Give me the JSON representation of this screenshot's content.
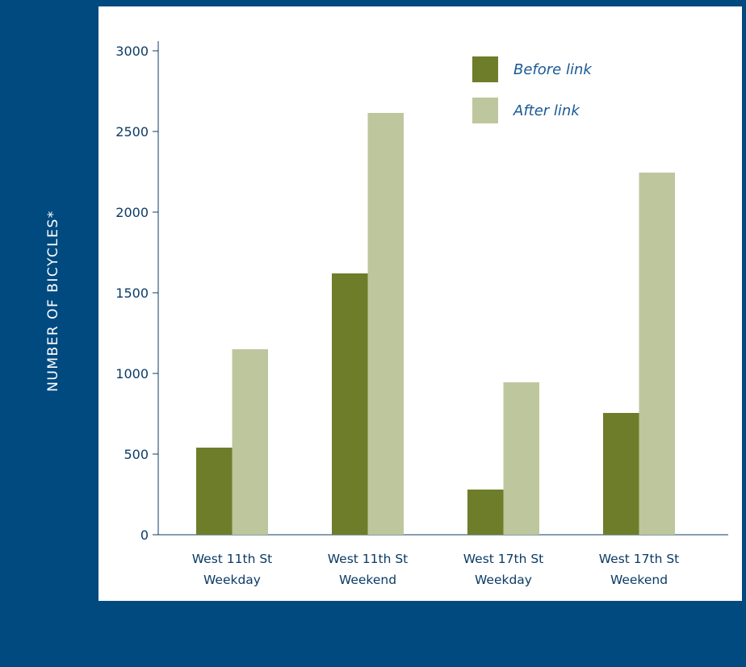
{
  "chart_data": {
    "type": "bar",
    "ylabel": "NUMBER OF BICYCLES*",
    "xlabel": "",
    "title": "",
    "ylim": [
      0,
      3000
    ],
    "yticks": [
      0,
      500,
      1000,
      1500,
      2000,
      2500,
      3000
    ],
    "categories": [
      [
        "West 11th St",
        "Weekday"
      ],
      [
        "West 11th St",
        "Weekend"
      ],
      [
        "West 17th St",
        "Weekday"
      ],
      [
        "West 17th St",
        "Weekend"
      ]
    ],
    "series": [
      {
        "name": "Before link",
        "color": "#6e7d2a",
        "values": [
          540,
          1620,
          280,
          755
        ]
      },
      {
        "name": "After link",
        "color": "#bec69e",
        "values": [
          1150,
          2615,
          945,
          2245
        ]
      }
    ],
    "legend_position": "top-right",
    "grid": false
  },
  "colors": {
    "background": "#004a80",
    "panel": "#ffffff",
    "axis": "#0b3b66"
  }
}
